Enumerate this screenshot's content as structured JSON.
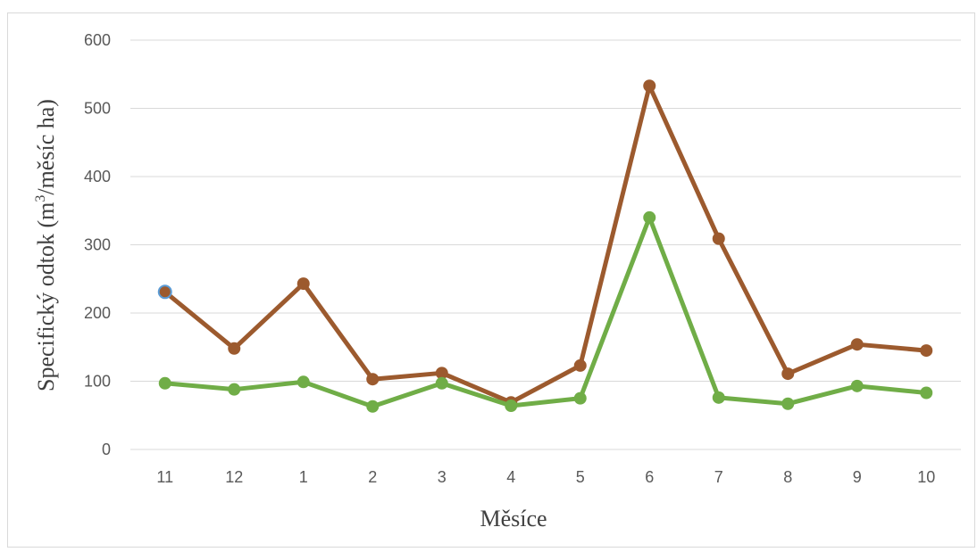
{
  "chart_data": {
    "type": "line",
    "title": "",
    "xlabel": "Měsíce",
    "ylabel_main": "Specifický odtok (m",
    "ylabel_sup": "3",
    "ylabel_tail": "/měsíc ha)",
    "categories": [
      "11",
      "12",
      "1",
      "2",
      "3",
      "4",
      "5",
      "6",
      "7",
      "8",
      "9",
      "10"
    ],
    "ylim": [
      0,
      600
    ],
    "yticks": [
      0,
      100,
      200,
      300,
      400,
      500,
      600
    ],
    "grid": true,
    "series": [
      {
        "color": "#9C5A2E",
        "values": [
          231,
          148,
          243,
          103,
          112,
          69,
          123,
          533,
          309,
          111,
          154,
          145
        ]
      },
      {
        "color": "#70AD47",
        "values": [
          97,
          88,
          99,
          63,
          97,
          64,
          75,
          340,
          76,
          67,
          93,
          83
        ]
      }
    ],
    "first_point_marker": {
      "fill": "#9C5A2E",
      "stroke": "#5B9BD5"
    }
  }
}
